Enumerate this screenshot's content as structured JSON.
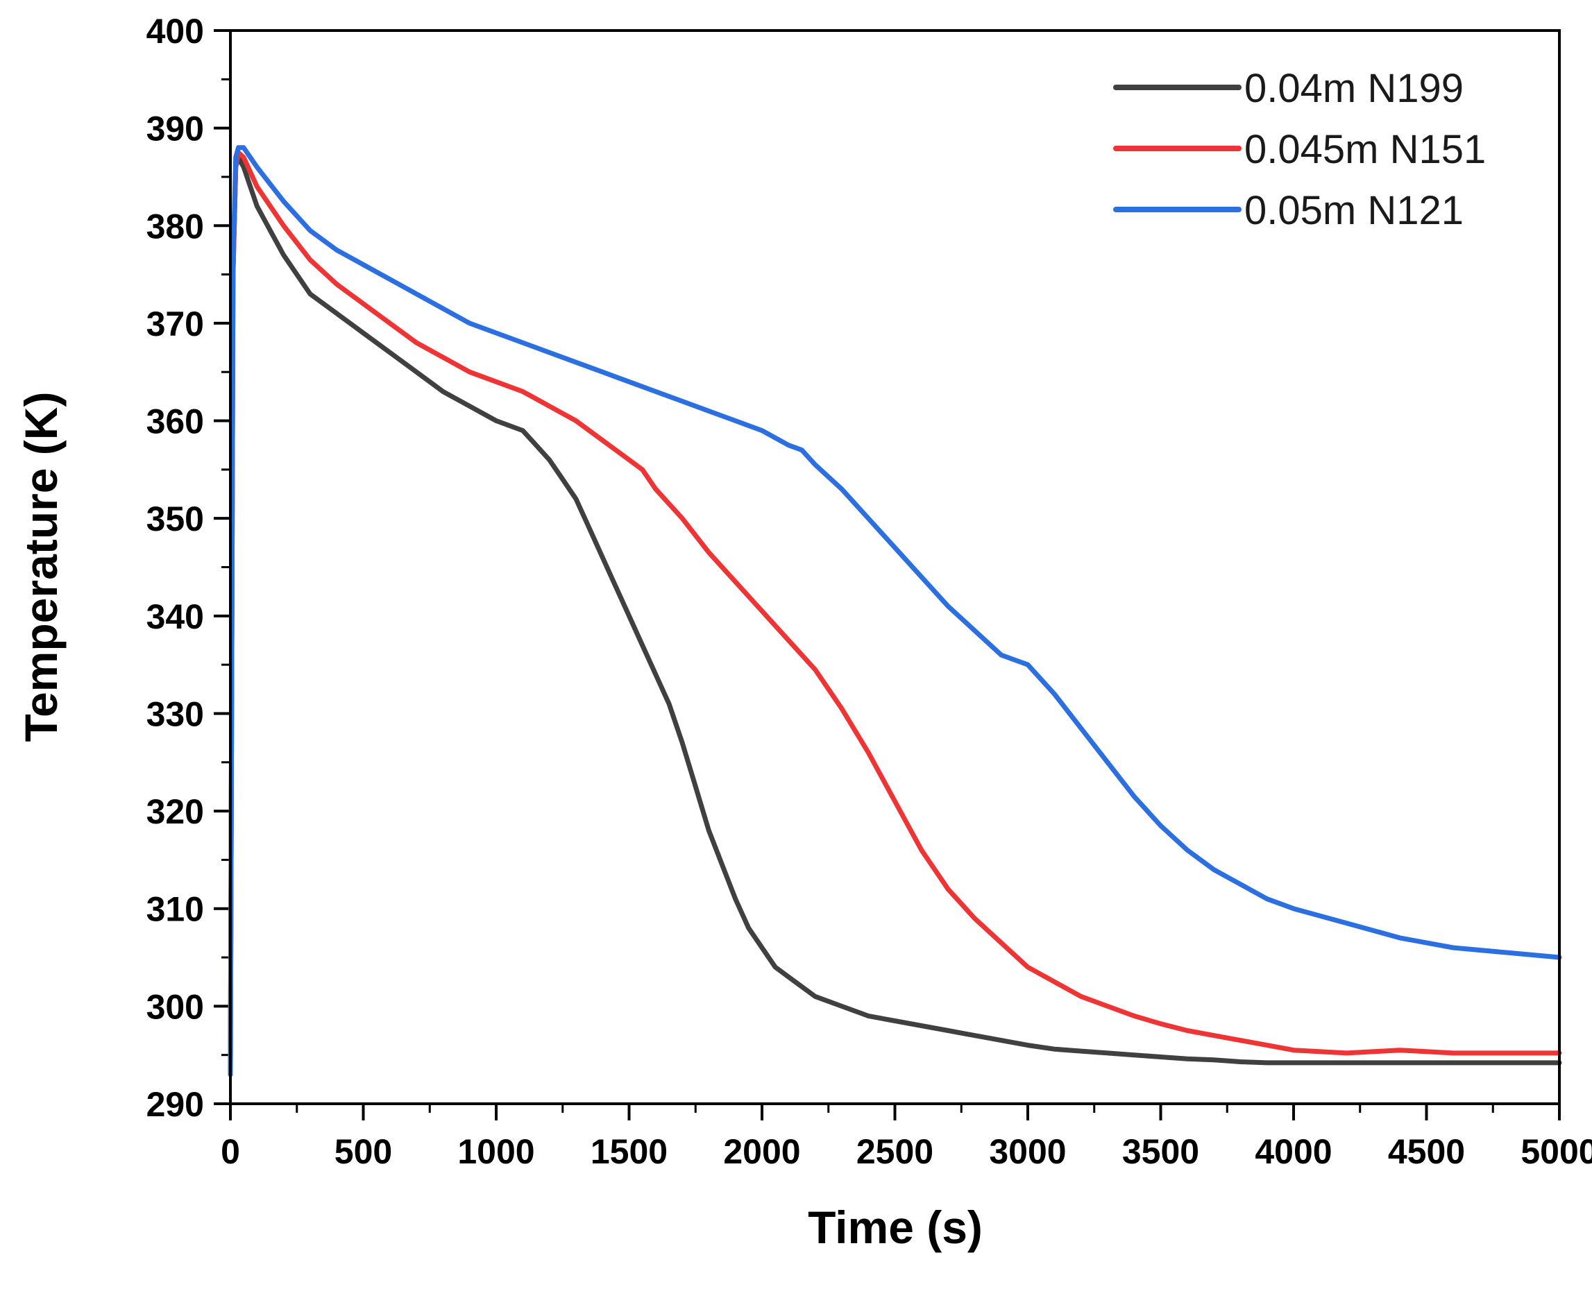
{
  "colors": {
    "axis": "#000000",
    "background": "#ffffff"
  },
  "chart_data": {
    "type": "line",
    "title": "",
    "xlabel": "Time (s)",
    "ylabel": "Temperature (K)",
    "xlim": [
      0,
      5000
    ],
    "ylim": [
      290,
      400
    ],
    "xticks": [
      0,
      500,
      1000,
      1500,
      2000,
      2500,
      3000,
      3500,
      4000,
      4500,
      5000
    ],
    "yticks": [
      290,
      300,
      310,
      320,
      330,
      340,
      350,
      360,
      370,
      380,
      390,
      400
    ],
    "xtick_labels": [
      "0",
      "500",
      "1000",
      "1500",
      "2000",
      "2500",
      "3000",
      "3500",
      "4000",
      "4500",
      "5000"
    ],
    "ytick_labels": [
      "290",
      "300",
      "310",
      "320",
      "330",
      "340",
      "350",
      "360",
      "370",
      "380",
      "390",
      "400"
    ],
    "grid": false,
    "legend_position": "top-right",
    "series": [
      {
        "name": "0.04m N199",
        "color": "#404040",
        "x": [
          0,
          10,
          20,
          30,
          50,
          100,
          150,
          200,
          300,
          350,
          400,
          500,
          600,
          700,
          800,
          900,
          1000,
          1100,
          1150,
          1200,
          1250,
          1300,
          1350,
          1400,
          1450,
          1500,
          1550,
          1600,
          1650,
          1700,
          1750,
          1800,
          1850,
          1900,
          1950,
          2000,
          2050,
          2100,
          2200,
          2300,
          2400,
          2500,
          2600,
          2700,
          2800,
          2900,
          3000,
          3100,
          3200,
          3300,
          3400,
          3500,
          3600,
          3700,
          3800,
          3900,
          4000,
          4200,
          4400,
          4600,
          4800,
          5000
        ],
        "values": [
          293,
          375,
          386,
          387,
          386,
          382,
          379.5,
          377,
          373,
          372,
          371,
          369,
          367,
          365,
          363,
          361.5,
          360,
          359,
          357.5,
          356,
          354,
          352,
          349,
          346,
          343,
          340,
          337,
          334,
          331,
          327,
          322.5,
          318,
          314.5,
          311,
          308,
          306,
          304,
          303,
          301,
          300,
          299,
          298.5,
          298,
          297.5,
          297,
          296.5,
          296,
          295.6,
          295.4,
          295.2,
          295.0,
          294.8,
          294.6,
          294.5,
          294.3,
          294.2,
          294.2,
          294.2,
          294.2,
          294.2,
          294.2,
          294.2
        ]
      },
      {
        "name": "0.045m N151",
        "color": "#ee3434",
        "x": [
          0,
          10,
          20,
          30,
          50,
          100,
          200,
          300,
          400,
          500,
          600,
          700,
          800,
          900,
          1000,
          1100,
          1200,
          1300,
          1400,
          1500,
          1550,
          1600,
          1700,
          1800,
          1900,
          2000,
          2100,
          2200,
          2300,
          2400,
          2500,
          2600,
          2700,
          2800,
          2900,
          3000,
          3100,
          3200,
          3300,
          3400,
          3500,
          3600,
          3700,
          3800,
          3900,
          4000,
          4200,
          4400,
          4600,
          4800,
          5000
        ],
        "values": [
          293,
          375,
          386,
          387.5,
          387,
          384,
          380,
          376.5,
          374,
          372,
          370,
          368,
          366.5,
          365,
          364,
          363,
          361.5,
          360,
          358,
          356,
          355,
          353,
          350,
          346.5,
          343.5,
          340.5,
          337.5,
          334.5,
          330.5,
          326,
          321,
          316,
          312,
          309,
          306.5,
          304,
          302.5,
          301,
          300,
          299,
          298.2,
          297.5,
          297,
          296.5,
          296,
          295.5,
          295.2,
          295.5,
          295.2,
          295.2,
          295.2
        ]
      },
      {
        "name": "0.05m N121",
        "color": "#2b6fe0",
        "x": [
          0,
          10,
          20,
          30,
          50,
          100,
          200,
          300,
          400,
          500,
          600,
          700,
          800,
          900,
          1000,
          1100,
          1200,
          1300,
          1400,
          1500,
          1600,
          1700,
          1800,
          1900,
          2000,
          2100,
          2150,
          2200,
          2300,
          2400,
          2500,
          2600,
          2700,
          2800,
          2900,
          2950,
          3000,
          3100,
          3200,
          3300,
          3400,
          3500,
          3600,
          3700,
          3800,
          3900,
          4000,
          4200,
          4400,
          4600,
          4800,
          5000
        ],
        "values": [
          293,
          376,
          387,
          388,
          388,
          386,
          382.5,
          379.5,
          377.5,
          376,
          374.5,
          373,
          371.5,
          370,
          369,
          368,
          367,
          366,
          365,
          364,
          363,
          362,
          361,
          360,
          359,
          357.5,
          357,
          355.5,
          353,
          350,
          347,
          344,
          341,
          338.5,
          336,
          335.5,
          335,
          332,
          328.5,
          325,
          321.5,
          318.5,
          316,
          314,
          312.5,
          311,
          310,
          308.5,
          307,
          306,
          305.5,
          305
        ]
      }
    ]
  }
}
